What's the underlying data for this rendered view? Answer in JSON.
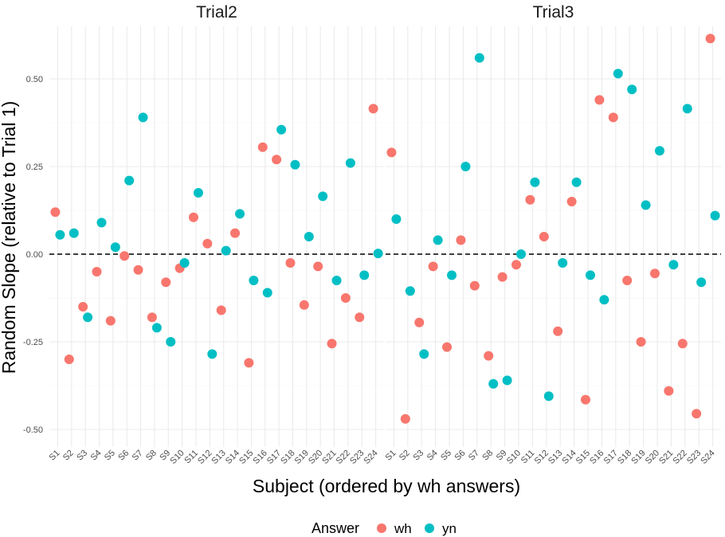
{
  "chart_data": {
    "type": "scatter",
    "xlabel": "Subject (ordered by wh answers)",
    "ylabel": "Random Slope (relative to Trial 1)",
    "categories": [
      "S1",
      "S2",
      "S3",
      "S4",
      "S5",
      "S6",
      "S7",
      "S8",
      "S9",
      "S10",
      "S11",
      "S12",
      "S13",
      "S14",
      "S15",
      "S16",
      "S17",
      "S18",
      "S19",
      "S20",
      "S21",
      "S22",
      "S23",
      "S24"
    ],
    "ylim": [
      -0.55,
      0.65
    ],
    "yticks": [
      -0.5,
      -0.25,
      0.0,
      0.25,
      0.5
    ],
    "ytick_labels": [
      "-0.50",
      "-0.25",
      "0.00",
      "0.25",
      "0.50"
    ],
    "reference_line": 0,
    "grid": true,
    "legend": {
      "title": "Answer",
      "position": "bottom"
    },
    "colors": {
      "wh": "#F8766D",
      "yn": "#00BFC4"
    },
    "panels": [
      {
        "title": "Trial2",
        "series": [
          {
            "name": "wh",
            "values": [
              0.12,
              -0.3,
              -0.15,
              -0.05,
              -0.19,
              -0.005,
              -0.045,
              -0.18,
              -0.08,
              -0.04,
              0.105,
              0.03,
              -0.16,
              0.06,
              -0.31,
              0.305,
              0.27,
              -0.025,
              -0.145,
              -0.035,
              -0.255,
              -0.125,
              -0.18,
              0.415
            ]
          },
          {
            "name": "yn",
            "values": [
              0.055,
              0.06,
              -0.18,
              0.09,
              0.02,
              0.21,
              0.39,
              -0.21,
              -0.25,
              -0.025,
              0.175,
              -0.285,
              0.01,
              0.115,
              -0.075,
              -0.11,
              0.355,
              0.255,
              0.05,
              0.165,
              -0.075,
              0.26,
              -0.06,
              0.002
            ]
          }
        ]
      },
      {
        "title": "Trial3",
        "series": [
          {
            "name": "wh",
            "values": [
              0.29,
              -0.47,
              -0.195,
              -0.035,
              -0.265,
              0.04,
              -0.09,
              -0.29,
              -0.065,
              -0.03,
              0.155,
              0.05,
              -0.22,
              0.15,
              -0.415,
              0.44,
              0.39,
              -0.075,
              -0.25,
              -0.055,
              -0.39,
              -0.255,
              -0.455,
              0.615
            ]
          },
          {
            "name": "yn",
            "values": [
              0.1,
              -0.105,
              -0.285,
              0.04,
              -0.06,
              0.25,
              0.56,
              -0.37,
              -0.36,
              0.0,
              0.205,
              -0.405,
              -0.025,
              0.205,
              -0.06,
              -0.13,
              0.515,
              0.47,
              0.14,
              0.295,
              -0.03,
              0.415,
              -0.08,
              0.11
            ]
          }
        ]
      }
    ]
  }
}
